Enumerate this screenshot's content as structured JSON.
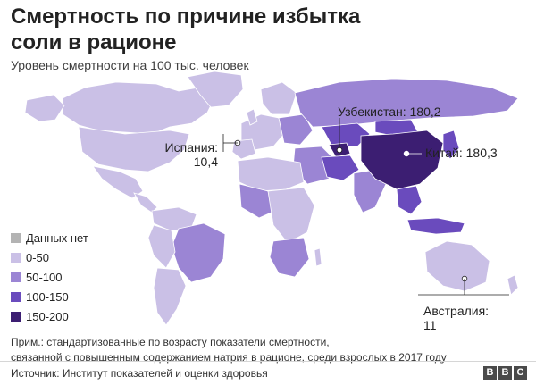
{
  "header": {
    "title": "Смертность по причине избытка соли в рационе",
    "subtitle": "Уровень смертности на 100 тыс. человек"
  },
  "legend": {
    "items": [
      {
        "label": "Данных нет",
        "color": "#b3b3b3"
      },
      {
        "label": "0-50",
        "color": "#cac0e6"
      },
      {
        "label": "50-100",
        "color": "#9b85d4"
      },
      {
        "label": "100-150",
        "color": "#6a4bbd"
      },
      {
        "label": "150-200",
        "color": "#3c1e72"
      }
    ]
  },
  "callouts": {
    "uzbekistan": "Узбекистан: 180,2",
    "china": "Китай: 180,3",
    "spain_line1": "Испания:",
    "spain_line2": "10,4",
    "australia_line1": "Австралия:",
    "australia_line2": "11"
  },
  "map_data": {
    "metric": "deaths per 100k",
    "highlighted": [
      {
        "country": "Узбекистан",
        "value": 180.2,
        "band": "150-200"
      },
      {
        "country": "Китай",
        "value": 180.3,
        "band": "150-200"
      },
      {
        "country": "Испания",
        "value": 10.4,
        "band": "0-50"
      },
      {
        "country": "Австралия",
        "value": 11,
        "band": "0-50"
      }
    ]
  },
  "footer": {
    "note_line1": "Прим.: стандартизованные по возрасту показатели смертности,",
    "note_line2": "связанной с повышенным содержанием натрия в рационе, среди взрослых в 2017 году",
    "source": "Источник: Институт показателей и оценки здоровья",
    "bbc": [
      "B",
      "B",
      "C"
    ]
  }
}
